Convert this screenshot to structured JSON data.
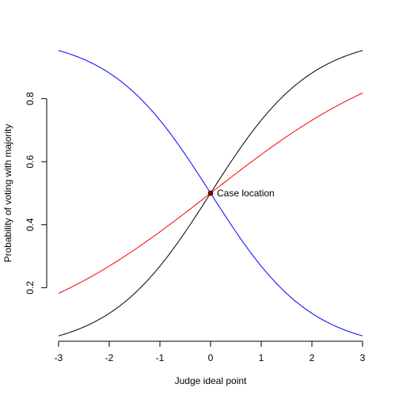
{
  "chart_data": {
    "type": "line",
    "title": "",
    "xlabel": "Judge ideal point",
    "ylabel": "Probability of voting with majority",
    "xlim": [
      -3,
      3
    ],
    "ylim": [
      0.04,
      0.96
    ],
    "x_ticks": [
      -3,
      -2,
      -1,
      0,
      1,
      2,
      3
    ],
    "x_tick_labels": [
      "-3",
      "-2",
      "-1",
      "0",
      "1",
      "2",
      "3"
    ],
    "y_ticks": [
      0.2,
      0.4,
      0.6,
      0.8
    ],
    "y_tick_labels": [
      "0.2",
      "0.4",
      "0.6",
      "0.8"
    ],
    "grid": false,
    "legend": "none",
    "x": [
      -3,
      -2.5,
      -2,
      -1.5,
      -1,
      -0.5,
      0,
      0.5,
      1,
      1.5,
      2,
      2.5,
      3
    ],
    "series": [
      {
        "color": "#000000",
        "values": [
          0.047,
          0.076,
          0.119,
          0.182,
          0.269,
          0.378,
          0.5,
          0.622,
          0.731,
          0.818,
          0.881,
          0.924,
          0.953
        ]
      },
      {
        "color": "#ff0000",
        "values": [
          0.182,
          0.223,
          0.269,
          0.321,
          0.378,
          0.438,
          0.5,
          0.562,
          0.622,
          0.679,
          0.731,
          0.777,
          0.818
        ]
      },
      {
        "color": "#0000ff",
        "values": [
          0.953,
          0.924,
          0.881,
          0.818,
          0.731,
          0.622,
          0.5,
          0.378,
          0.269,
          0.182,
          0.119,
          0.076,
          0.047
        ]
      }
    ],
    "annotation": {
      "x": 0,
      "y": 0.5,
      "label": "Case location",
      "color": "#8b0000"
    }
  }
}
